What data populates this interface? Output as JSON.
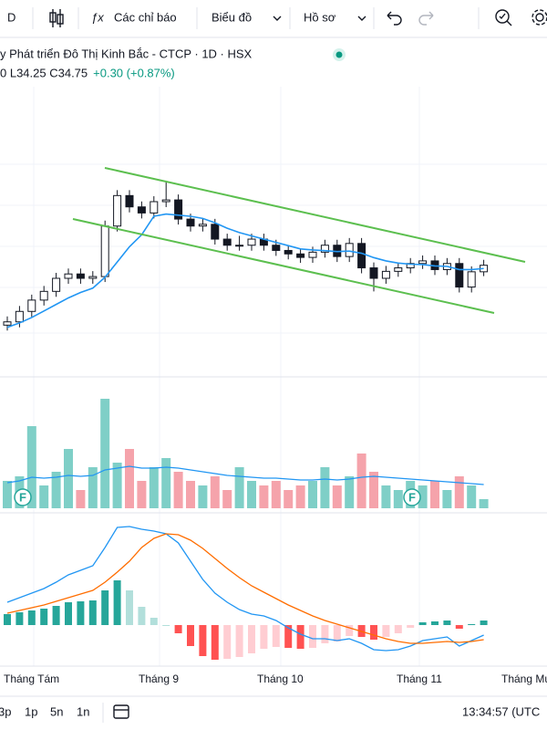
{
  "toolbar": {
    "symbol": "D",
    "indicators": "Các chỉ báo",
    "chart": "Biểu đồ",
    "profile": "Hồ sơ"
  },
  "header": {
    "title": "y Phát triển Đô Thị Kinh Bắc - CTCP · 1D · HSX",
    "ohlc": "0 L34.25 C34.75",
    "change": "+0.30 (+0.87%)"
  },
  "chart_data": [
    {
      "type": "candlestick",
      "up_color": "#ffffff",
      "down_color": "#131722",
      "border_color": "#131722",
      "open": [
        32.0,
        32.15,
        32.63,
        33.15,
        33.55,
        34.15,
        34.35,
        34.15,
        34.23,
        36.55,
        37.95,
        37.43,
        37.15,
        37.67,
        37.75,
        36.87,
        36.55,
        36.63,
        35.95,
        35.67,
        35.67,
        35.95,
        35.67,
        35.43,
        35.27,
        35.11,
        35.35,
        35.67,
        35.15,
        35.75,
        34.63,
        34.15,
        34.47,
        34.63,
        34.83,
        34.95,
        34.55,
        34.83,
        33.75,
        34.45
      ],
      "high": [
        32.4,
        32.88,
        33.4,
        33.8,
        34.4,
        34.6,
        34.6,
        34.48,
        36.8,
        38.2,
        38.2,
        37.68,
        37.92,
        38.55,
        38.0,
        37.12,
        36.88,
        36.88,
        36.2,
        36.1,
        36.2,
        36.2,
        35.92,
        35.68,
        35.52,
        35.6,
        35.92,
        35.92,
        36.0,
        36.0,
        34.88,
        34.72,
        34.88,
        35.08,
        35.2,
        35.2,
        35.08,
        35.08,
        34.7,
        35.0
      ],
      "low": [
        31.75,
        31.9,
        32.38,
        32.9,
        33.3,
        33.9,
        33.9,
        33.9,
        33.98,
        36.3,
        37.18,
        36.9,
        36.9,
        37.42,
        36.62,
        36.3,
        36.3,
        35.7,
        35.42,
        35.42,
        35.42,
        35.42,
        35.18,
        35.02,
        34.86,
        34.86,
        35.1,
        34.9,
        34.9,
        34.38,
        33.55,
        33.9,
        34.22,
        34.38,
        34.58,
        34.3,
        34.3,
        33.5,
        33.5,
        34.25
      ],
      "close": [
        32.15,
        32.63,
        33.15,
        33.55,
        34.15,
        34.35,
        34.15,
        34.23,
        36.55,
        37.95,
        37.43,
        37.15,
        37.67,
        37.75,
        36.87,
        36.55,
        36.63,
        35.95,
        35.67,
        35.67,
        35.95,
        35.67,
        35.43,
        35.27,
        35.11,
        35.35,
        35.67,
        35.15,
        35.75,
        34.63,
        34.15,
        34.47,
        34.63,
        34.83,
        34.95,
        34.55,
        34.83,
        33.75,
        34.45,
        34.75
      ],
      "ma": {
        "color": "#2196f3",
        "values": [
          31.9,
          32.1,
          32.35,
          32.65,
          32.95,
          33.25,
          33.5,
          33.7,
          34.2,
          34.9,
          35.6,
          36.15,
          37.0,
          37.1,
          37.05,
          37.0,
          36.9,
          36.7,
          36.45,
          36.25,
          36.1,
          35.95,
          35.8,
          35.65,
          35.5,
          35.45,
          35.42,
          35.38,
          35.4,
          35.3,
          35.1,
          34.95,
          34.85,
          34.8,
          34.78,
          34.72,
          34.7,
          34.55,
          34.55,
          34.6
        ]
      },
      "ylim": [
        29.75,
        42.95
      ]
    },
    {
      "type": "volume",
      "up_color": "#7fcfc7",
      "down_color": "#f5a3ab",
      "values": [
        30,
        35,
        90,
        25,
        40,
        65,
        20,
        45,
        120,
        50,
        65,
        30,
        45,
        55,
        40,
        30,
        25,
        35,
        20,
        45,
        30,
        25,
        30,
        20,
        25,
        30,
        45,
        25,
        35,
        60,
        40,
        25,
        20,
        30,
        25,
        30,
        20,
        35,
        25,
        10
      ],
      "ma": {
        "color": "#2196f3",
        "values": [
          28,
          30,
          34,
          33,
          34,
          36,
          35,
          36,
          42,
          44,
          46,
          44,
          44,
          45,
          44,
          42,
          40,
          38,
          36,
          35,
          34,
          33,
          33,
          32,
          31,
          31,
          32,
          31,
          32,
          34,
          35,
          34,
          33,
          32,
          31,
          30,
          29,
          28,
          27,
          26
        ]
      },
      "ylim": [
        0,
        140
      ]
    },
    {
      "type": "macd",
      "macd_color": "#2196f3",
      "signal_color": "#ff6d00",
      "hist_colors": {
        "up_strong": "#26a69a",
        "up_weak": "#b2dfdb",
        "down_strong": "#ff5252",
        "down_weak": "#ffcdd2"
      },
      "macd": [
        0.25,
        0.3,
        0.35,
        0.4,
        0.47,
        0.55,
        0.6,
        0.65,
        0.85,
        1.07,
        1.08,
        1.05,
        1.03,
        1.0,
        0.9,
        0.7,
        0.5,
        0.35,
        0.25,
        0.17,
        0.12,
        0.1,
        0.05,
        -0.03,
        -0.1,
        -0.15,
        -0.15,
        -0.17,
        -0.15,
        -0.2,
        -0.27,
        -0.28,
        -0.27,
        -0.23,
        -0.17,
        -0.15,
        -0.13,
        -0.23,
        -0.17,
        -0.11
      ],
      "signal": [
        0.13,
        0.16,
        0.19,
        0.22,
        0.26,
        0.3,
        0.34,
        0.38,
        0.47,
        0.58,
        0.7,
        0.85,
        0.95,
        1.0,
        0.99,
        0.93,
        0.84,
        0.73,
        0.62,
        0.52,
        0.43,
        0.36,
        0.29,
        0.22,
        0.16,
        0.1,
        0.05,
        0.01,
        -0.03,
        -0.07,
        -0.11,
        -0.15,
        -0.18,
        -0.2,
        -0.2,
        -0.19,
        -0.18,
        -0.19,
        -0.18,
        -0.16
      ],
      "histogram": [
        0.12,
        0.14,
        0.16,
        0.18,
        0.21,
        0.25,
        0.26,
        0.27,
        0.38,
        0.49,
        0.38,
        0.2,
        0.08,
        0.0,
        -0.09,
        -0.23,
        -0.34,
        -0.38,
        -0.37,
        -0.35,
        -0.31,
        -0.26,
        -0.24,
        -0.25,
        -0.26,
        -0.25,
        -0.2,
        -0.18,
        -0.12,
        -0.13,
        -0.16,
        -0.13,
        -0.09,
        -0.03,
        0.03,
        0.04,
        0.05,
        -0.04,
        0.01,
        0.05
      ],
      "ylim": [
        -0.4,
        1.2
      ]
    }
  ],
  "x_axis_labels": [
    "Tháng Tám",
    "Tháng 9",
    "Tháng 10",
    "Tháng 11",
    "Tháng Mư"
  ],
  "markers": [
    "F",
    "F"
  ],
  "bottom_bar": {
    "ranges": [
      "3p",
      "1p",
      "5n",
      "1n"
    ],
    "time": "13:34:57 (UTC"
  }
}
